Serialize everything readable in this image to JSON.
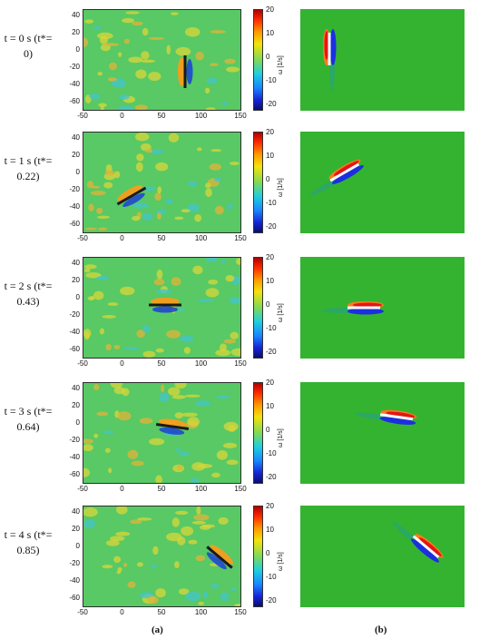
{
  "rows": [
    {
      "time_label": "t = 0 s (t*=",
      "nd_value": "0)"
    },
    {
      "time_label": "t = 1 s (t*=",
      "nd_value": "0.22)"
    },
    {
      "time_label": "t = 2 s (t*=",
      "nd_value": "0.43)"
    },
    {
      "time_label": "t = 3 s (t*=",
      "nd_value": "0.64)"
    },
    {
      "time_label": "t = 4 s (t*=",
      "nd_value": "0.85)"
    }
  ],
  "piv_axes": {
    "y_ticks": [
      "40",
      "20",
      "0",
      "-20",
      "-40",
      "-60"
    ],
    "x_ticks": [
      "-50",
      "0",
      "50",
      "100",
      "150"
    ]
  },
  "colorbar": {
    "ticks": [
      "20",
      "10",
      "0",
      "-10",
      "-20"
    ],
    "unit": "ω [1/s]"
  },
  "panel_labels": {
    "a": "(a)",
    "b": "(b)"
  }
}
